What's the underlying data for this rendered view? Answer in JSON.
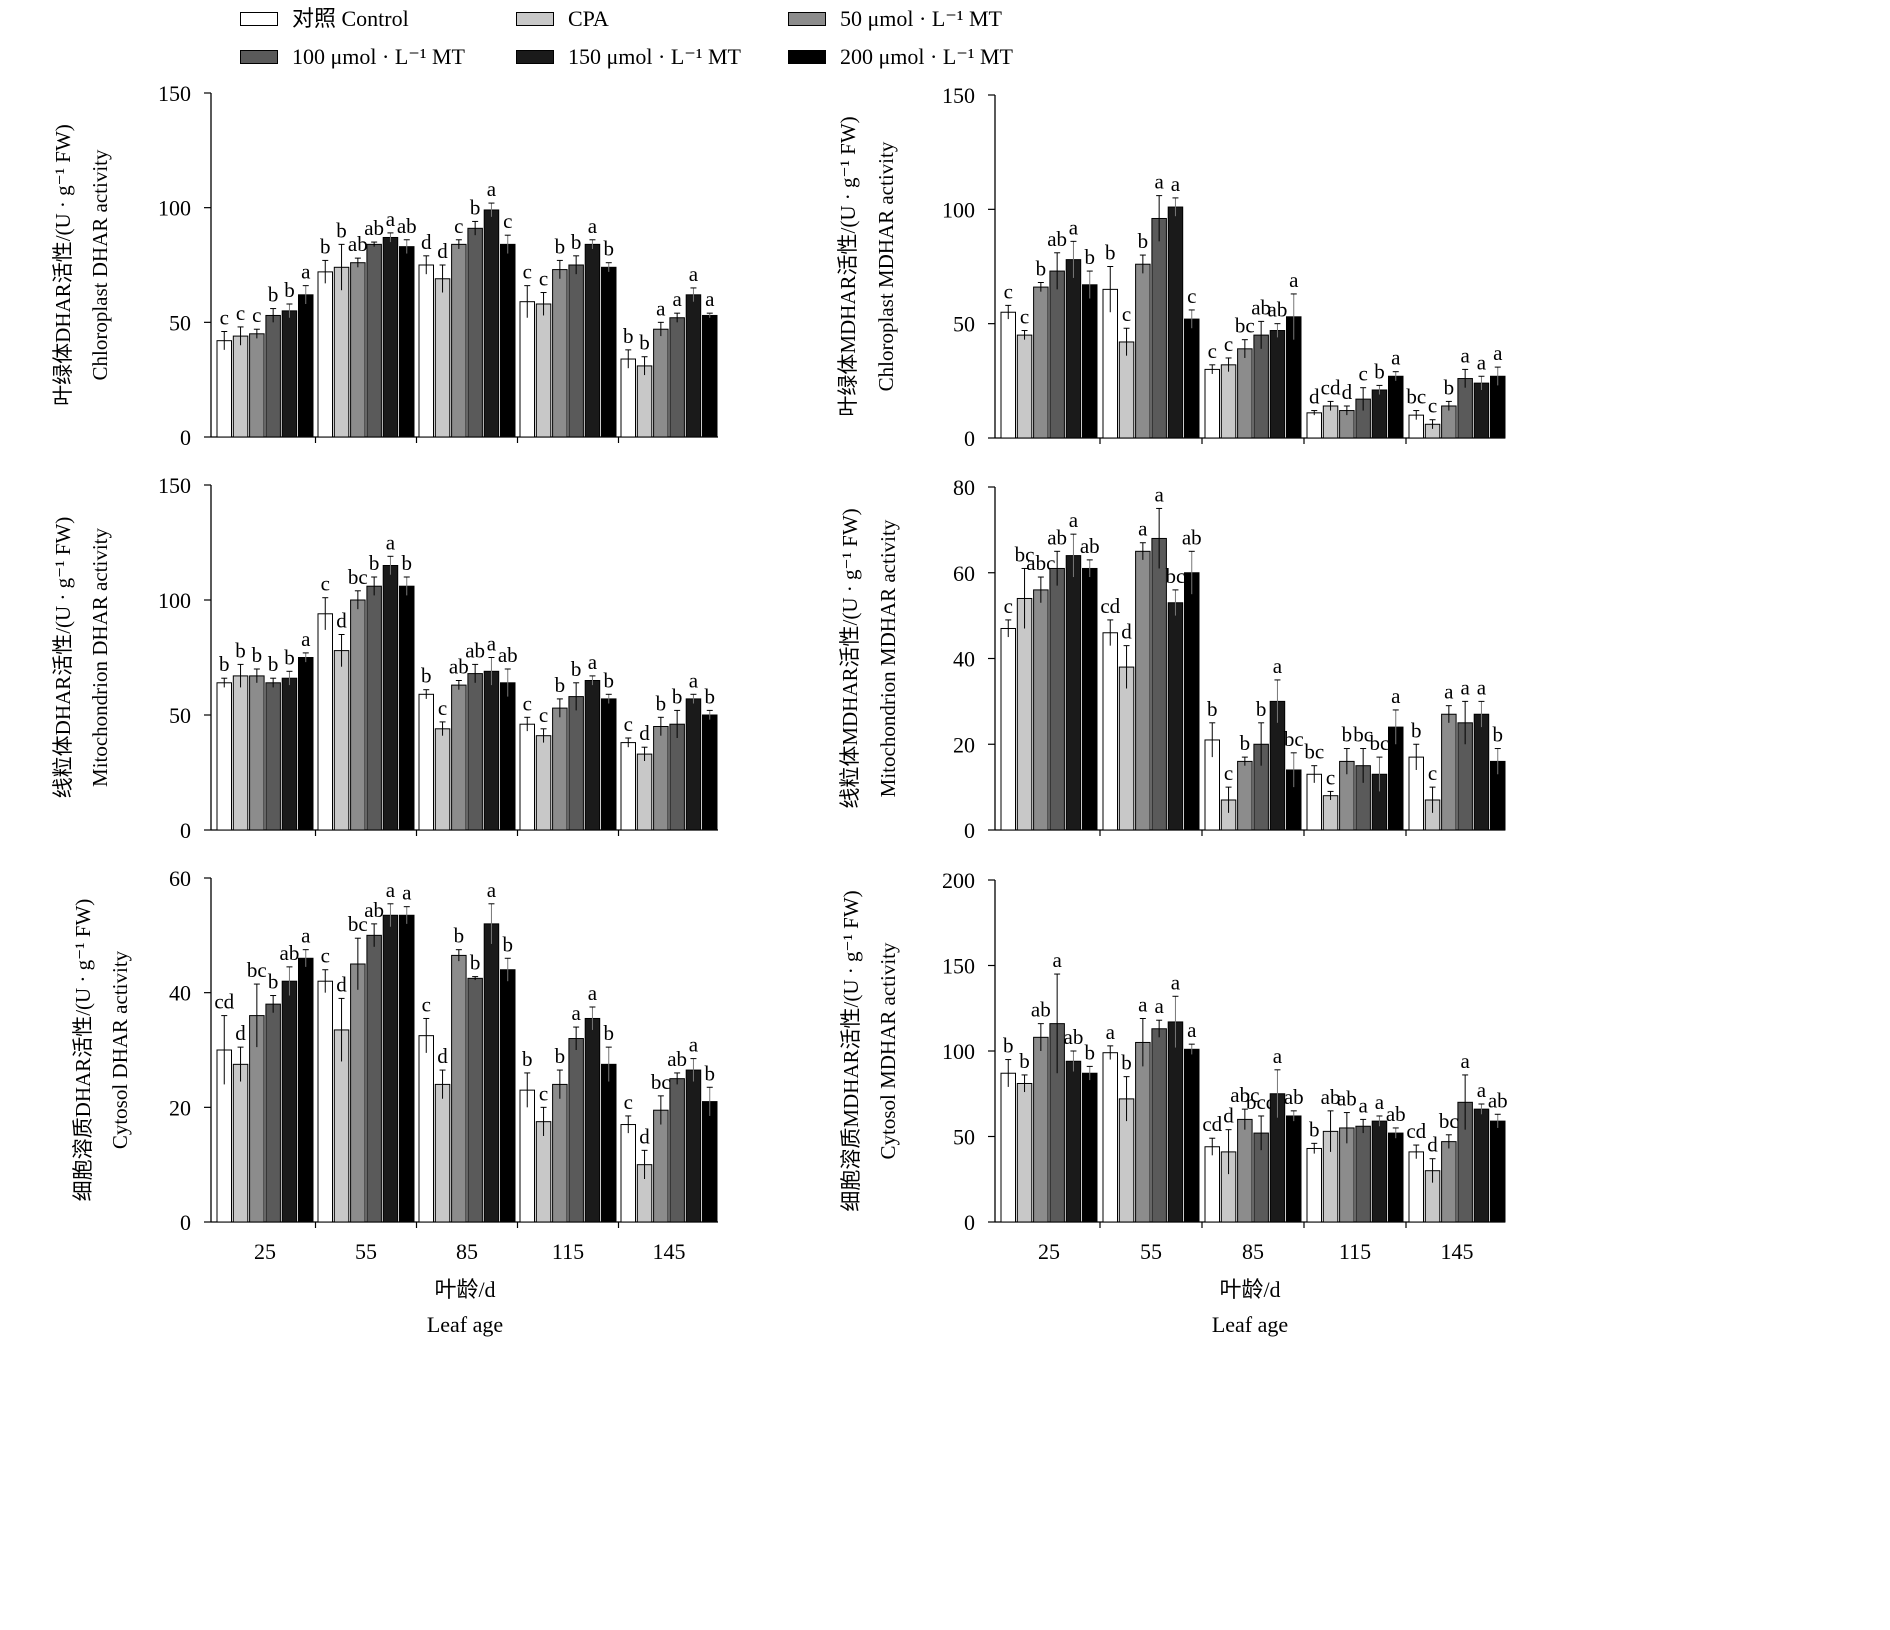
{
  "legend": [
    {
      "label": "对照 Control",
      "color": "#ffffff"
    },
    {
      "label": "CPA",
      "color": "#c8c8c8"
    },
    {
      "label": "50 μmol · L⁻¹ MT",
      "color": "#8c8c8c"
    },
    {
      "label": "100 μmol · L⁻¹ MT",
      "color": "#5a5a5a"
    },
    {
      "label": "150 μmol · L⁻¹ MT",
      "color": "#1a1a1a"
    },
    {
      "label": "200 μmol · L⁻¹ MT",
      "color": "#000000"
    }
  ],
  "x_axis": {
    "tick_labels": [
      "25",
      "55",
      "85",
      "115",
      "145"
    ],
    "label_cn": "叶龄/d",
    "label_en": "Leaf age"
  },
  "chart_data": [
    {
      "type": "bar",
      "panel": "chloroplast-dhar",
      "ylabel_cn": "叶绿体DHAR活性/(U · g⁻¹ FW)",
      "ylabel_en": "Chloroplast DHAR activity",
      "ylim": [
        0,
        150
      ],
      "yticks": [
        0,
        50,
        100,
        150
      ],
      "categories": [
        "25",
        "55",
        "85",
        "115",
        "145"
      ],
      "series": [
        {
          "name": "对照 Control",
          "values": [
            42,
            72,
            75,
            59,
            34
          ],
          "errors": [
            4,
            5,
            4,
            7,
            4
          ],
          "letters": [
            "c",
            "b",
            "d",
            "c",
            "b"
          ]
        },
        {
          "name": "CPA",
          "values": [
            44,
            74,
            69,
            58,
            31
          ],
          "errors": [
            4,
            10,
            6,
            5,
            4
          ],
          "letters": [
            "c",
            "b",
            "d",
            "c",
            "b"
          ]
        },
        {
          "name": "50 μmol · L⁻¹ MT",
          "values": [
            45,
            76,
            84,
            73,
            47
          ],
          "errors": [
            2,
            2,
            2,
            4,
            3
          ],
          "letters": [
            "c",
            "ab",
            "c",
            "b",
            "a"
          ]
        },
        {
          "name": "100 μmol · L⁻¹ MT",
          "values": [
            53,
            84,
            91,
            75,
            52
          ],
          "errors": [
            3,
            1,
            3,
            4,
            2
          ],
          "letters": [
            "b",
            "ab",
            "b",
            "b",
            "a"
          ]
        },
        {
          "name": "150 μmol · L⁻¹ MT",
          "values": [
            55,
            87,
            99,
            84,
            62
          ],
          "errors": [
            3,
            2,
            3,
            2,
            3
          ],
          "letters": [
            "b",
            "a",
            "a",
            "a",
            "a"
          ]
        },
        {
          "name": "200 μmol · L⁻¹ MT",
          "values": [
            62,
            83,
            84,
            74,
            53
          ],
          "errors": [
            4,
            3,
            4,
            2,
            1
          ],
          "letters": [
            "a",
            "ab",
            "c",
            "b",
            "a"
          ]
        }
      ]
    },
    {
      "type": "bar",
      "panel": "chloroplast-mdhar",
      "ylabel_cn": "叶绿体MDHAR活性/(U · g⁻¹ FW)",
      "ylabel_en": "Chloroplast MDHAR activity",
      "ylim": [
        0,
        150
      ],
      "yticks": [
        0,
        50,
        100,
        150
      ],
      "categories": [
        "25",
        "55",
        "85",
        "115",
        "145"
      ],
      "series": [
        {
          "name": "对照 Control",
          "values": [
            55,
            65,
            30,
            11,
            10
          ],
          "errors": [
            3,
            10,
            2,
            1,
            2
          ],
          "letters": [
            "c",
            "b",
            "c",
            "d",
            "bc"
          ]
        },
        {
          "name": "CPA",
          "values": [
            45,
            42,
            32,
            14,
            6
          ],
          "errors": [
            2,
            6,
            3,
            2,
            2
          ],
          "letters": [
            "c",
            "c",
            "c",
            "cd",
            "c"
          ]
        },
        {
          "name": "50 μmol · L⁻¹ MT",
          "values": [
            66,
            76,
            39,
            12,
            14
          ],
          "errors": [
            2,
            4,
            4,
            2,
            2
          ],
          "letters": [
            "b",
            "b",
            "bc",
            "d",
            "b"
          ]
        },
        {
          "name": "100 μmol · L⁻¹ MT",
          "values": [
            73,
            96,
            45,
            17,
            26
          ],
          "errors": [
            8,
            10,
            6,
            5,
            4
          ],
          "letters": [
            "ab",
            "a",
            "ab",
            "c",
            "a"
          ]
        },
        {
          "name": "150 μmol · L⁻¹ MT",
          "values": [
            78,
            101,
            47,
            21,
            24
          ],
          "errors": [
            8,
            4,
            3,
            2,
            3
          ],
          "letters": [
            "a",
            "a",
            "ab",
            "b",
            "a"
          ]
        },
        {
          "name": "200 μmol · L⁻¹ MT",
          "values": [
            67,
            52,
            53,
            27,
            27
          ],
          "errors": [
            6,
            4,
            10,
            2,
            4
          ],
          "letters": [
            "b",
            "c",
            "a",
            "a",
            "a"
          ]
        }
      ]
    },
    {
      "type": "bar",
      "panel": "mitochondrion-dhar",
      "ylabel_cn": "线粒体DHAR活性/(U · g⁻¹ FW)",
      "ylabel_en": "Mitochondrion DHAR activity",
      "ylim": [
        0,
        150
      ],
      "yticks": [
        0,
        50,
        100,
        150
      ],
      "categories": [
        "25",
        "55",
        "85",
        "115",
        "145"
      ],
      "series": [
        {
          "name": "对照 Control",
          "values": [
            64,
            94,
            59,
            46,
            38
          ],
          "errors": [
            2,
            7,
            2,
            3,
            2
          ],
          "letters": [
            "b",
            "c",
            "b",
            "c",
            "c"
          ]
        },
        {
          "name": "CPA",
          "values": [
            67,
            78,
            44,
            41,
            33
          ],
          "errors": [
            5,
            7,
            3,
            3,
            3
          ],
          "letters": [
            "b",
            "d",
            "c",
            "c",
            "d"
          ]
        },
        {
          "name": "50 μmol · L⁻¹ MT",
          "values": [
            67,
            100,
            63,
            53,
            45
          ],
          "errors": [
            3,
            4,
            2,
            4,
            4
          ],
          "letters": [
            "b",
            "bc",
            "ab",
            "b",
            "b"
          ]
        },
        {
          "name": "100 μmol · L⁻¹ MT",
          "values": [
            64,
            106,
            68,
            58,
            46
          ],
          "errors": [
            2,
            4,
            4,
            6,
            6
          ],
          "letters": [
            "b",
            "b",
            "ab",
            "b",
            "b"
          ]
        },
        {
          "name": "150 μmol · L⁻¹ MT",
          "values": [
            66,
            115,
            69,
            65,
            57
          ],
          "errors": [
            3,
            4,
            6,
            2,
            2
          ],
          "letters": [
            "b",
            "a",
            "a",
            "a",
            "a"
          ]
        },
        {
          "name": "200 μmol · L⁻¹ MT",
          "values": [
            75,
            106,
            64,
            57,
            50
          ],
          "errors": [
            2,
            4,
            6,
            2,
            2
          ],
          "letters": [
            "a",
            "b",
            "ab",
            "b",
            "b"
          ]
        }
      ]
    },
    {
      "type": "bar",
      "panel": "mitochondrion-mdhar",
      "ylabel_cn": "线粒体MDHAR活性/(U · g⁻¹ FW)",
      "ylabel_en": "Mitochondrion MDHAR activity",
      "ylim": [
        0,
        80
      ],
      "yticks": [
        0,
        20,
        40,
        60,
        80
      ],
      "categories": [
        "25",
        "55",
        "85",
        "115",
        "145"
      ],
      "series": [
        {
          "name": "对照 Control",
          "values": [
            47,
            46,
            21,
            13,
            17
          ],
          "errors": [
            2,
            3,
            4,
            2,
            3
          ],
          "letters": [
            "c",
            "cd",
            "b",
            "bc",
            "b"
          ]
        },
        {
          "name": "CPA",
          "values": [
            54,
            38,
            7,
            8,
            7
          ],
          "errors": [
            7,
            5,
            3,
            1,
            3
          ],
          "letters": [
            "bc",
            "d",
            "c",
            "c",
            "c"
          ]
        },
        {
          "name": "50 μmol · L⁻¹ MT",
          "values": [
            56,
            65,
            16,
            16,
            27
          ],
          "errors": [
            3,
            2,
            1,
            3,
            2
          ],
          "letters": [
            "abc",
            "a",
            "b",
            "b",
            "a"
          ]
        },
        {
          "name": "100 μmol · L⁻¹ MT",
          "values": [
            61,
            68,
            20,
            15,
            25
          ],
          "errors": [
            4,
            7,
            5,
            4,
            5
          ],
          "letters": [
            "ab",
            "a",
            "b",
            "bc",
            "a"
          ]
        },
        {
          "name": "150 μmol · L⁻¹ MT",
          "values": [
            64,
            53,
            30,
            13,
            27
          ],
          "errors": [
            5,
            3,
            5,
            4,
            3
          ],
          "letters": [
            "a",
            "bc",
            "a",
            "bc",
            "a"
          ]
        },
        {
          "name": "200 μmol · L⁻¹ MT",
          "values": [
            61,
            60,
            14,
            24,
            16
          ],
          "errors": [
            2,
            5,
            4,
            4,
            3
          ],
          "letters": [
            "ab",
            "ab",
            "bc",
            "a",
            "b"
          ]
        }
      ]
    },
    {
      "type": "bar",
      "panel": "cytosol-dhar",
      "ylabel_cn": "细胞溶质DHAR活性/(U · g⁻¹ FW)",
      "ylabel_en": "Cytosol DHAR activity",
      "ylim": [
        0,
        60
      ],
      "yticks": [
        0,
        20,
        40,
        60
      ],
      "categories": [
        "25",
        "55",
        "85",
        "115",
        "145"
      ],
      "series": [
        {
          "name": "对照 Control",
          "values": [
            30,
            42,
            32.5,
            23,
            17
          ],
          "errors": [
            6,
            2,
            3,
            3,
            1.5
          ],
          "letters": [
            "cd",
            "c",
            "c",
            "b",
            "c"
          ]
        },
        {
          "name": "CPA",
          "values": [
            27.5,
            33.5,
            24,
            17.5,
            10
          ],
          "errors": [
            3,
            5.5,
            2.5,
            2.5,
            2.5
          ],
          "letters": [
            "d",
            "d",
            "d",
            "c",
            "d"
          ]
        },
        {
          "name": "50 μmol · L⁻¹ MT",
          "values": [
            36,
            45,
            46.5,
            24,
            19.5
          ],
          "errors": [
            5.5,
            4.5,
            1,
            2.5,
            2.5
          ],
          "letters": [
            "bc",
            "bc",
            "b",
            "b",
            "bc"
          ]
        },
        {
          "name": "100 μmol · L⁻¹ MT",
          "values": [
            38,
            50,
            42.5,
            32,
            25
          ],
          "errors": [
            1.5,
            2,
            0.3,
            2,
            1
          ],
          "letters": [
            "b",
            "ab",
            "b",
            "a",
            "ab"
          ]
        },
        {
          "name": "150 μmol · L⁻¹ MT",
          "values": [
            42,
            53.5,
            52,
            35.5,
            26.5
          ],
          "errors": [
            2.5,
            2,
            3.5,
            2,
            2
          ],
          "letters": [
            "ab",
            "a",
            "a",
            "a",
            "a"
          ]
        },
        {
          "name": "200 μmol · L⁻¹ MT",
          "values": [
            46,
            53.5,
            44,
            27.5,
            21
          ],
          "errors": [
            1.5,
            1.5,
            2,
            3,
            2.5
          ],
          "letters": [
            "a",
            "a",
            "b",
            "b",
            "b"
          ]
        }
      ]
    },
    {
      "type": "bar",
      "panel": "cytosol-mdhar",
      "ylabel_cn": "细胞溶质MDHAR活性/(U · g⁻¹ FW)",
      "ylabel_en": "Cytosol MDHAR activity",
      "ylim": [
        0,
        200
      ],
      "yticks": [
        0,
        50,
        100,
        150,
        200
      ],
      "categories": [
        "25",
        "55",
        "85",
        "115",
        "145"
      ],
      "series": [
        {
          "name": "对照 Control",
          "values": [
            87,
            99,
            44,
            43,
            41
          ],
          "errors": [
            8,
            4,
            5,
            3,
            4
          ],
          "letters": [
            "b",
            "a",
            "cd",
            "b",
            "cd"
          ]
        },
        {
          "name": "CPA",
          "values": [
            81,
            72,
            41,
            53,
            30
          ],
          "errors": [
            5,
            13,
            13,
            12,
            7
          ],
          "letters": [
            "b",
            "b",
            "d",
            "ab",
            "d"
          ]
        },
        {
          "name": "50 μmol · L⁻¹ MT",
          "values": [
            108,
            105,
            60,
            55,
            47
          ],
          "errors": [
            8,
            14,
            6,
            9,
            4
          ],
          "letters": [
            "ab",
            "a",
            "abc",
            "ab",
            "bc"
          ]
        },
        {
          "name": "100 μmol · L⁻¹ MT",
          "values": [
            116,
            113,
            52,
            56,
            70
          ],
          "errors": [
            29,
            5,
            10,
            4,
            16
          ],
          "letters": [
            "a",
            "a",
            "bcd",
            "a",
            "a"
          ]
        },
        {
          "name": "150 μmol · L⁻¹ MT",
          "values": [
            94,
            117,
            75,
            59,
            66
          ],
          "errors": [
            6,
            15,
            14,
            3,
            3
          ],
          "letters": [
            "ab",
            "a",
            "a",
            "a",
            "a"
          ]
        },
        {
          "name": "200 μmol · L⁻¹ MT",
          "values": [
            87,
            101,
            62,
            52,
            59
          ],
          "errors": [
            4,
            3,
            3,
            3,
            4
          ],
          "letters": [
            "b",
            "a",
            "ab",
            "ab",
            "ab"
          ]
        }
      ]
    }
  ]
}
